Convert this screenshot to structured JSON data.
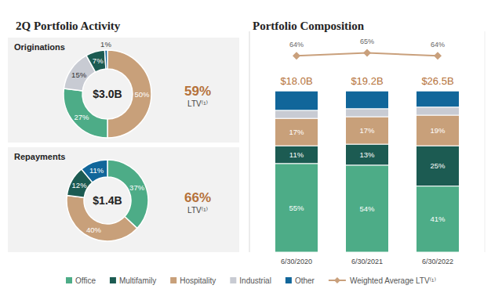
{
  "panel_title": "2Q Portfolio Activity",
  "chart_data": [
    {
      "type": "pie",
      "title": "Originations",
      "categories": [
        "Hospitality",
        "Office",
        "Industrial",
        "Multifamily",
        "Other"
      ],
      "values": [
        50,
        27,
        15,
        7,
        1
      ],
      "value_labels": [
        "50%",
        "27%",
        "15%",
        "7%",
        "1%"
      ],
      "colors": [
        "#c8a07a",
        "#4dac87",
        "#c8cbd3",
        "#1c5b52",
        "#11669a"
      ],
      "data_labels": true,
      "center_text": "$3.0B",
      "ltv_text": "59%",
      "ltv_caption": "LTV⁽¹⁾"
    },
    {
      "type": "pie",
      "title": "Repayments",
      "categories": [
        "Office",
        "Hospitality",
        "Multifamily",
        "Other"
      ],
      "values": [
        37,
        40,
        12,
        11
      ],
      "value_labels": [
        "37%",
        "40%",
        "12%",
        "11%"
      ],
      "colors": [
        "#4dac87",
        "#c8a07a",
        "#1c5b52",
        "#11669a"
      ],
      "data_labels": true,
      "center_text": "$1.4B",
      "ltv_text": "66%",
      "ltv_caption": "LTV⁽¹⁾"
    },
    {
      "type": "bar",
      "title": "Portfolio Composition",
      "stacked": true,
      "categories": [
        "6/30/2020",
        "6/30/2021",
        "6/30/2022"
      ],
      "series": [
        {
          "name": "Office",
          "color": "#4dac87",
          "values": [
            55,
            54,
            41
          ],
          "value_labels": [
            "55%",
            "54%",
            "41%"
          ],
          "data_labels": true
        },
        {
          "name": "Multifamily",
          "color": "#1c5b52",
          "values": [
            11,
            13,
            25
          ],
          "value_labels": [
            "11%",
            "13%",
            "25%"
          ],
          "data_labels": true
        },
        {
          "name": "Hospitality",
          "color": "#c8a07a",
          "values": [
            17,
            17,
            19
          ],
          "value_labels": [
            "17%",
            "17%",
            "19%"
          ],
          "data_labels": true
        },
        {
          "name": "Industrial",
          "color": "#c8cbd3",
          "values": [
            5,
            5,
            5
          ],
          "data_labels": false
        },
        {
          "name": "Other",
          "color": "#11669a",
          "values": [
            12,
            11,
            10
          ],
          "data_labels": false
        },
        {
          "name": "Weighted Average LTV⁽¹⁾",
          "type": "line",
          "axis": "y2",
          "color": "#c9a07c",
          "marker": "diamond",
          "values": [
            64,
            65,
            64
          ],
          "value_labels": [
            "64%",
            "65%",
            "64%"
          ],
          "data_labels": true
        }
      ],
      "ylim": [
        0,
        137
      ],
      "yticks": [],
      "y2lim": [
        0,
        72
      ],
      "y2ticks": [],
      "grid": false,
      "legend": "bottom",
      "tick_labels": "x",
      "total_labels": [
        "$18.0B",
        "$19.2B",
        "$26.5B"
      ]
    }
  ]
}
